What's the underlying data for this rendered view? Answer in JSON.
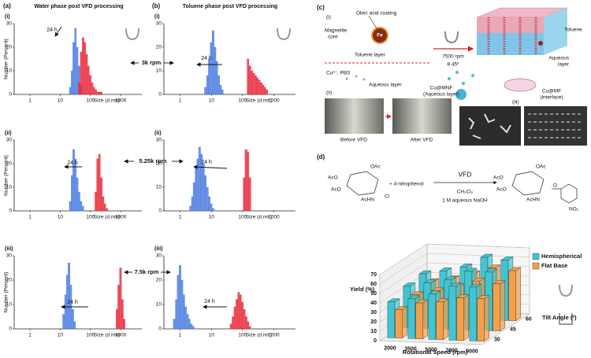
{
  "panel_a": {
    "label": "(a)",
    "title": "Water phase post VFD processing"
  },
  "panel_b": {
    "label": "(b)",
    "title": "Toluene phase post VFD processing"
  },
  "panel_c": {
    "label": "(c)",
    "sub_i": "(i)",
    "sub_ii": "(ii)",
    "sub_iii": "(iii)",
    "oleic": "Oleic acid coating",
    "magnetite": "Magnetite",
    "core": "core",
    "fe": "Fe",
    "toluene_layer": "Toluene layer",
    "cu_pbs": "Cu²⁺, PBS",
    "aqueous_layer": "Aqueous layer",
    "rpm": "7500 rpm",
    "angle": "θ 45º",
    "toluene": "Toluene",
    "aqueous": "Aqueous",
    "layer": "layer",
    "cu_mnf": "Cu@MNF",
    "cu_mnf_sub": "(Aqueous layer)",
    "cu_mf": "Cu@MF",
    "cu_mf_sub": "(interface)",
    "before": "Before VFD",
    "after": "After VFD"
  },
  "panel_d": {
    "label": "(d)",
    "reagent": "+ 4-nitrophenol",
    "vfd": "VFD",
    "solvent": "CH₂Cl₂",
    "base": "1 M aqueous NaOH",
    "oac1": "OAc",
    "aco1": "AcO",
    "aco2": "AcO",
    "achn1": "AcHN",
    "cl": "Cl",
    "oac2": "OAc",
    "aco3": "AcO",
    "aco4": "AcO",
    "achn2": "AcHN",
    "o": "O",
    "no2": "NO₂"
  },
  "chart_data": [
    {
      "type": "histogram",
      "label": "(i)",
      "ylabel": "Number (Percent)",
      "xlabel": "Size (d.nm)",
      "log_x": true,
      "xlim": [
        0.3,
        5000
      ],
      "xticks": [
        1,
        10,
        100,
        1000
      ],
      "ylim": [
        0,
        30
      ],
      "yticks": [
        0,
        10,
        20,
        30
      ],
      "annotations": [
        "24 h",
        "3k rpm"
      ],
      "series": [
        {
          "color": "#4a7be0",
          "bins": [
            20,
            23,
            26,
            30,
            34,
            39,
            45,
            52
          ],
          "values": [
            3,
            10,
            22,
            28,
            20,
            12,
            4
          ]
        },
        {
          "color": "#e8283a",
          "bins": [
            40,
            46,
            53,
            61,
            70,
            80,
            92,
            106,
            122,
            140,
            160,
            185,
            212,
            245
          ],
          "values": [
            5,
            18,
            24,
            22,
            17,
            12,
            8,
            5,
            3,
            2,
            1,
            1,
            1
          ]
        }
      ]
    },
    {
      "type": "histogram",
      "label": "(ii)",
      "ylabel": "Number (Percent)",
      "xlabel": "Size (d.nm)",
      "log_x": true,
      "xlim": [
        0.3,
        5000
      ],
      "xticks": [
        1,
        10,
        100,
        1000
      ],
      "ylim": [
        0,
        30
      ],
      "yticks": [
        0,
        10,
        20,
        30
      ],
      "annotations": [
        "24 h",
        "5.25k rpm"
      ],
      "series": [
        {
          "color": "#4a7be0",
          "bins": [
            20,
            23,
            26,
            30,
            34,
            39,
            45,
            52,
            60
          ],
          "values": [
            4,
            15,
            26,
            22,
            14,
            8,
            4,
            2
          ]
        },
        {
          "color": "#e8283a",
          "bins": [
            140,
            160,
            185,
            212,
            245,
            280,
            322,
            370
          ],
          "values": [
            8,
            22,
            24,
            14,
            6,
            3,
            1
          ]
        }
      ]
    },
    {
      "type": "histogram",
      "label": "(iii)",
      "ylabel": "Number (Percent)",
      "xlabel": "Size (d.nm)",
      "log_x": true,
      "xlim": [
        0.3,
        5000
      ],
      "xticks": [
        1,
        10,
        100,
        1000
      ],
      "ylim": [
        0,
        30
      ],
      "yticks": [
        0,
        10,
        20,
        30
      ],
      "annotations": [
        "24 h",
        "7.5k rpm"
      ],
      "series": [
        {
          "color": "#4a7be0",
          "bins": [
            12,
            14,
            16,
            18,
            21,
            24,
            28,
            32
          ],
          "values": [
            6,
            14,
            22,
            27,
            18,
            8,
            3
          ]
        },
        {
          "color": "#e8283a",
          "bins": [
            700,
            800,
            920,
            1060,
            1220,
            1400
          ],
          "values": [
            8,
            18,
            25,
            12,
            4
          ]
        }
      ]
    },
    {
      "type": "histogram",
      "label": "(i)",
      "xlabel": "Size (d.nm)",
      "log_x": true,
      "xlim": [
        0.3,
        5000
      ],
      "xticks": [
        1,
        10,
        100,
        1000
      ],
      "ylim": [
        0,
        30
      ],
      "yticks": [
        0,
        10,
        20,
        30
      ],
      "annotations": [
        "24 h"
      ],
      "series": [
        {
          "color": "#4a7be0",
          "bins": [
            6,
            7,
            8,
            9.2,
            10.6,
            12.2,
            14,
            16,
            18.4,
            21,
            24
          ],
          "values": [
            3,
            8,
            15,
            22,
            27,
            20,
            14,
            8,
            4,
            2
          ]
        },
        {
          "color": "#e8283a",
          "bins": [
            140,
            160,
            185,
            212,
            245,
            280,
            322,
            370,
            425,
            490,
            560,
            640
          ],
          "values": [
            15,
            12,
            10,
            9,
            8,
            7,
            6,
            5,
            4,
            3,
            2
          ]
        }
      ]
    },
    {
      "type": "histogram",
      "label": "(ii)",
      "xlabel": "Size (d.nm)",
      "log_x": true,
      "xlim": [
        0.3,
        5000
      ],
      "xticks": [
        1,
        10,
        100,
        1000
      ],
      "ylim": [
        0,
        30
      ],
      "yticks": [
        0,
        10,
        20,
        30
      ],
      "annotations": [
        "24 h"
      ],
      "series": [
        {
          "color": "#4a7be0",
          "bins": [
            2,
            2.3,
            2.6,
            3,
            3.4,
            3.9,
            4.5,
            5.2,
            6,
            6.9,
            8,
            9.2,
            10.6,
            12.2
          ],
          "values": [
            2,
            6,
            12,
            18,
            22,
            27,
            24,
            20,
            15,
            10,
            6,
            3,
            1
          ]
        },
        {
          "color": "#e8283a",
          "bins": [
            105,
            120,
            140,
            160,
            185
          ],
          "values": [
            14,
            26,
            25,
            14
          ]
        }
      ]
    },
    {
      "type": "histogram",
      "label": "(iii)",
      "xlabel": "Size (d.nm)",
      "log_x": true,
      "xlim": [
        0.3,
        5000
      ],
      "xticks": [
        1,
        10,
        100,
        1000
      ],
      "ylim": [
        0,
        30
      ],
      "yticks": [
        0,
        10,
        20,
        30
      ],
      "annotations": [
        "24 h"
      ],
      "series": [
        {
          "color": "#4a7be0",
          "bins": [
            0.6,
            0.7,
            0.8,
            0.92,
            1.06,
            1.22,
            1.4,
            1.6,
            1.85,
            2.1,
            2.45,
            2.8
          ],
          "values": [
            4,
            12,
            22,
            26,
            20,
            14,
            9,
            6,
            4,
            2,
            1
          ]
        },
        {
          "color": "#e8283a",
          "bins": [
            40,
            46,
            53,
            61,
            70,
            80,
            92,
            106,
            122,
            140,
            160,
            185
          ],
          "values": [
            2,
            5,
            9,
            12,
            15,
            14,
            11,
            8,
            5,
            3,
            1
          ]
        }
      ]
    },
    {
      "type": "bar3d",
      "ylabel": "Yield (%)",
      "xlabel": "Rotational Speed (rpm)",
      "zlabel": "Tilt Angle (º)",
      "categories": [
        2000,
        3500,
        5000,
        7000,
        9000
      ],
      "z_categories": [
        30,
        45,
        60
      ],
      "ylim": [
        0,
        70
      ],
      "yticks": [
        0,
        10,
        20,
        30,
        40,
        50,
        60,
        70
      ],
      "grid": true,
      "legend": "upper right",
      "series": [
        {
          "name": "Hemispherical",
          "color": "#3fc6d2",
          "values": [
            [
              38,
              42,
              48,
              57,
              57
            ],
            [
              44,
              48,
              52,
              62,
              62
            ],
            [
              46,
              50,
              55,
              66,
              64
            ]
          ]
        },
        {
          "name": "Flat Base",
          "color": "#f4a04a",
          "values": [
            [
              30,
              38,
              40,
              45,
              45
            ],
            [
              35,
              40,
              45,
              52,
              50
            ],
            [
              38,
              42,
              48,
              55,
              53
            ]
          ]
        }
      ]
    }
  ]
}
